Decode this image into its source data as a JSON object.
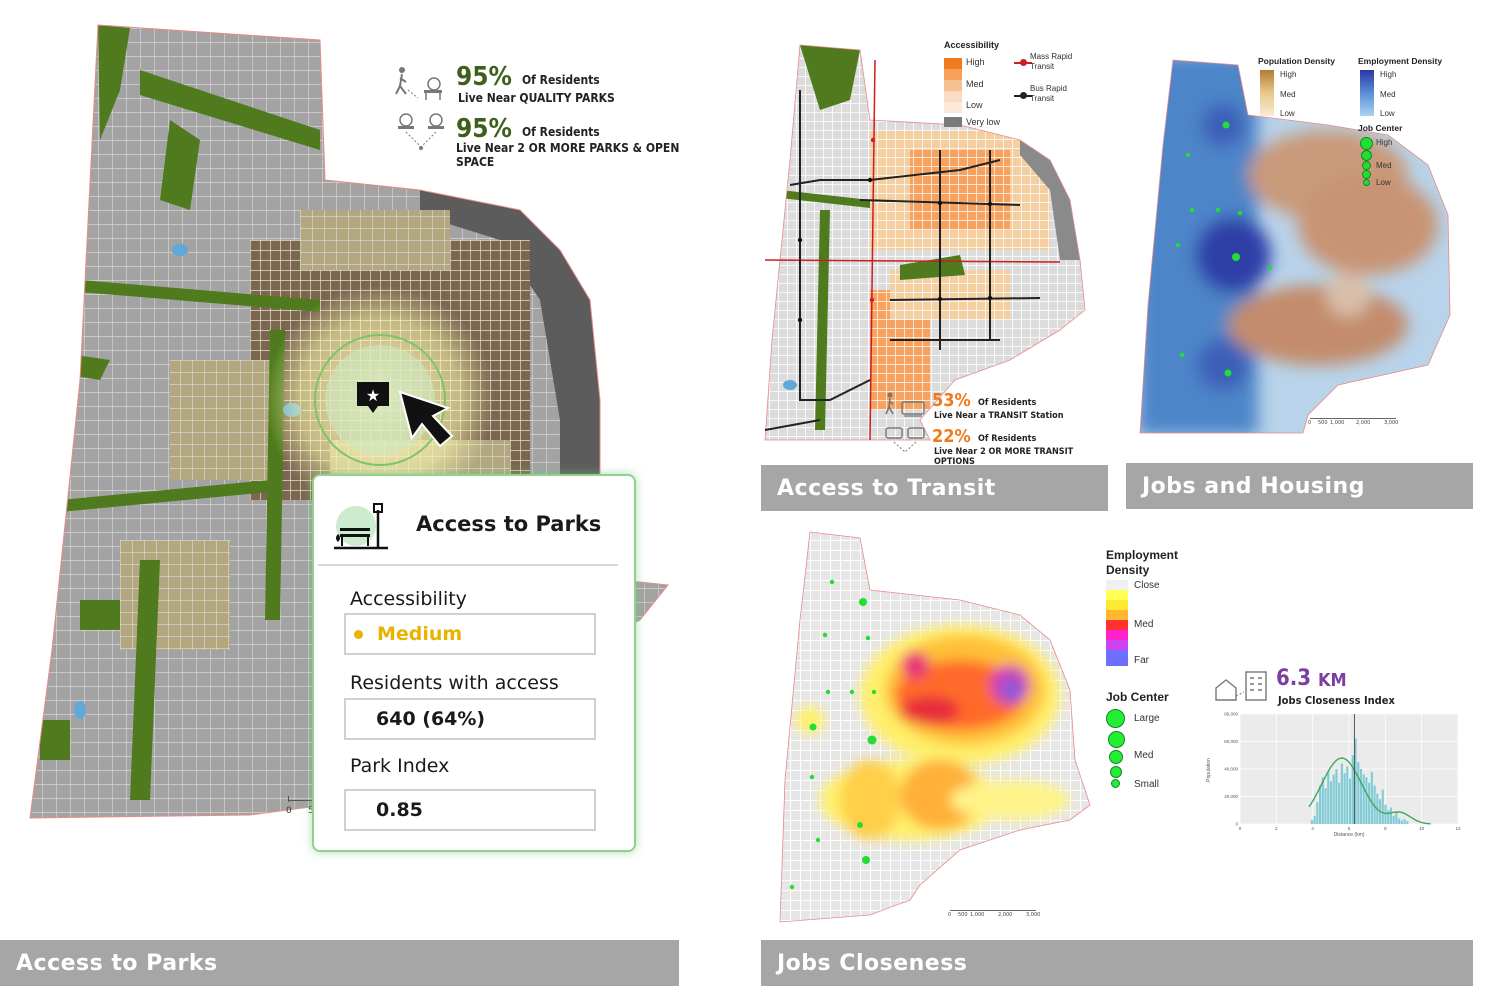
{
  "panels": {
    "parks": {
      "label": "Access to Parks"
    },
    "transit": {
      "label": "Access to Transit"
    },
    "housing": {
      "label": "Jobs and Housing"
    },
    "closeness": {
      "label": "Jobs Closeness"
    }
  },
  "parks_stats": {
    "stat1": {
      "value": "95%",
      "suffix": "Of Residents",
      "caption": "Live Near QUALITY PARKS"
    },
    "stat2": {
      "value": "95%",
      "suffix": "Of Residents",
      "caption": "Live Near 2 OR MORE PARKS & OPEN SPACE"
    }
  },
  "parks_card": {
    "title": "Access to Parks",
    "accessibility_label": "Accessibility",
    "accessibility_value": "Medium",
    "residents_label": "Residents with access",
    "residents_value": "640 (64%)",
    "index_label": "Park Index",
    "index_value": "0.85"
  },
  "parks_scale": {
    "zero": "0",
    "five": "5"
  },
  "transit_legend": {
    "title": "Accessibility",
    "items": [
      "High",
      "Med",
      "Low",
      "Very low"
    ],
    "mrt": "Mass Rapid Transit",
    "brt": "Bus Rapid Transit"
  },
  "transit_stats": {
    "stat1": {
      "value": "53%",
      "suffix": "Of Residents",
      "caption": "Live Near a TRANSIT Station"
    },
    "stat2": {
      "value": "22%",
      "suffix": "Of Residents",
      "caption": "Live Near 2 OR MORE TRANSIT OPTIONS"
    }
  },
  "housing_legend": {
    "pop_title": "Population Density",
    "emp_title": "Employment Density",
    "levels": [
      "High",
      "Med",
      "Low"
    ],
    "job_title": "Job Center",
    "job_levels": [
      "High",
      "Med",
      "Low"
    ]
  },
  "scale_ticks": [
    "0",
    "500",
    "1,000",
    "2,000",
    "3,000"
  ],
  "closeness_legend": {
    "emp_title": "Employment",
    "emp_title2": "Density",
    "levels": [
      "Close",
      "Med",
      "Far"
    ],
    "job_title": "Job Center",
    "job_levels": [
      "Large",
      "Med",
      "Small"
    ]
  },
  "closeness_stat": {
    "value": "6.3",
    "unit": "KM",
    "caption": "Jobs Closeness Index"
  },
  "hist": {
    "ylabel": "Population",
    "xlabel": "Distance (km)",
    "yticks": [
      "80,000",
      "60,000",
      "40,000",
      "20,000",
      "0"
    ],
    "xticks": [
      "0",
      "2",
      "4",
      "6",
      "8",
      "10",
      "12"
    ]
  },
  "colors": {
    "panel_label_bg": "#a6a6a6",
    "park_green": "#4f7a1e",
    "accent_orange": "#f07a1e",
    "medium_yellow": "#e8b400",
    "stat_green": "#3e5f1c",
    "purple": "#7a3fa0"
  }
}
